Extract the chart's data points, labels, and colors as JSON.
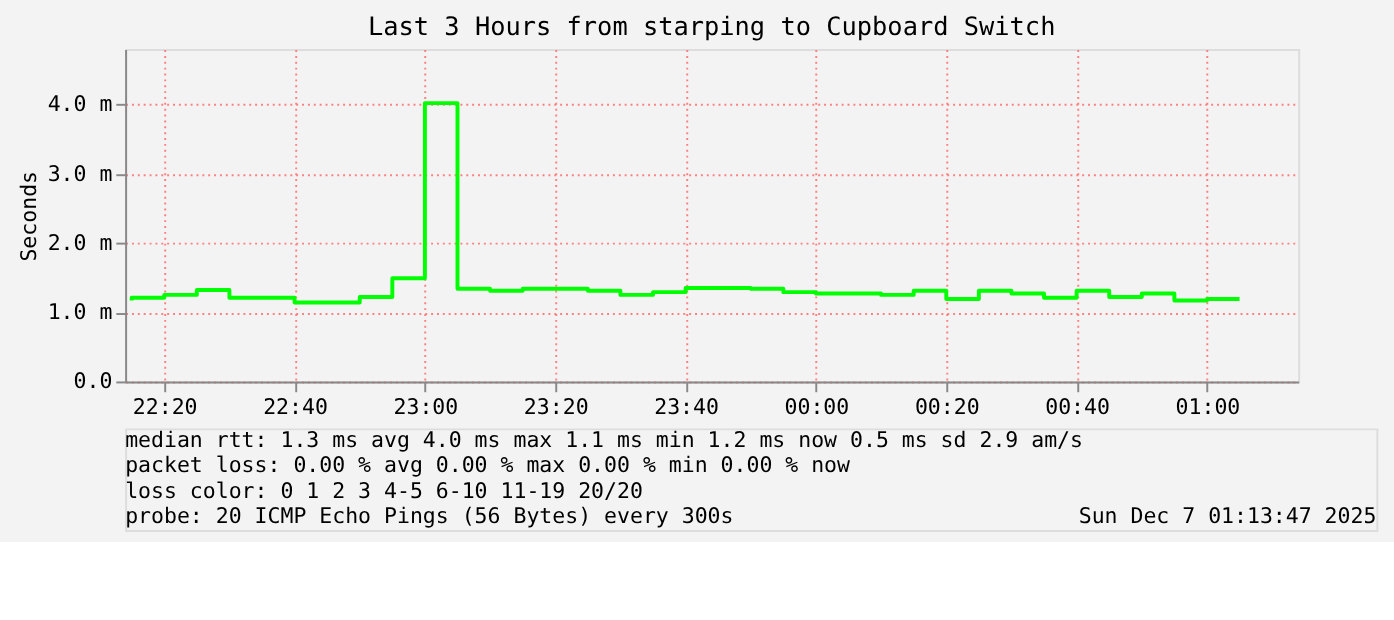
{
  "chart_data": {
    "type": "step",
    "title": "Last 3 Hours from starping to Cupboard Switch",
    "ylabel": "Seconds",
    "x": [
      "2025-12-06T22:15",
      "2025-12-06T22:20",
      "2025-12-06T22:25",
      "2025-12-06T22:30",
      "2025-12-06T22:35",
      "2025-12-06T22:40",
      "2025-12-06T22:45",
      "2025-12-06T22:50",
      "2025-12-06T22:55",
      "2025-12-06T23:00",
      "2025-12-06T23:05",
      "2025-12-06T23:10",
      "2025-12-06T23:15",
      "2025-12-06T23:20",
      "2025-12-06T23:25",
      "2025-12-06T23:30",
      "2025-12-06T23:35",
      "2025-12-06T23:40",
      "2025-12-06T23:45",
      "2025-12-06T23:50",
      "2025-12-06T23:55",
      "2025-12-07T00:00",
      "2025-12-07T00:05",
      "2025-12-07T00:10",
      "2025-12-07T00:15",
      "2025-12-07T00:20",
      "2025-12-07T00:25",
      "2025-12-07T00:30",
      "2025-12-07T00:35",
      "2025-12-07T00:40",
      "2025-12-07T00:45",
      "2025-12-07T00:50",
      "2025-12-07T00:55",
      "2025-12-07T01:00",
      "2025-12-07T01:05"
    ],
    "series": [
      {
        "color": "#00ff00",
        "values": [
          1.17,
          1.21,
          1.25,
          1.32,
          1.21,
          1.21,
          1.14,
          1.14,
          1.22,
          1.49,
          4.02,
          1.34,
          1.31,
          1.34,
          1.34,
          1.31,
          1.25,
          1.29,
          1.35,
          1.35,
          1.34,
          1.29,
          1.27,
          1.27,
          1.25,
          1.31,
          1.19,
          1.31,
          1.27,
          1.21,
          1.31,
          1.22,
          1.27,
          1.17,
          1.19
        ]
      }
    ],
    "xlim": [
      "2025-12-06T22:14",
      "2025-12-07T01:14"
    ],
    "xticks": [
      {
        "value": "2025-12-06T22:20",
        "label": "22:20"
      },
      {
        "value": "2025-12-06T22:40",
        "label": "22:40"
      },
      {
        "value": "2025-12-06T23:00",
        "label": "23:00"
      },
      {
        "value": "2025-12-06T23:20",
        "label": "23:20"
      },
      {
        "value": "2025-12-06T23:40",
        "label": "23:40"
      },
      {
        "value": "2025-12-07T00:00",
        "label": "00:00"
      },
      {
        "value": "2025-12-07T00:20",
        "label": "00:20"
      },
      {
        "value": "2025-12-07T00:40",
        "label": "00:40"
      },
      {
        "value": "2025-12-07T01:00",
        "label": "01:00"
      }
    ],
    "ylim": [
      0,
      4.8
    ],
    "yticks": [
      {
        "value": 0,
        "label": "0.0"
      },
      {
        "value": 1,
        "label": "1.0 m"
      },
      {
        "value": 2,
        "label": "2.0 m"
      },
      {
        "value": 3,
        "label": "3.0 m"
      },
      {
        "value": 4,
        "label": "4.0 m"
      }
    ],
    "grid": true,
    "annotations": [
      "median rtt:  1.3 ms avg  4.0 ms max  1.1 ms min  1.2 ms now  0.5 ms sd  2.9   am/s",
      "packet loss: 0.00 % avg  0.00 % max  0.00 % min  0.00 % now",
      "loss color:  0  1  2  3  4-5  6-10  11-19  20/20",
      "probe:       20 ICMP Echo Pings (56 Bytes) every 300s",
      "Sun Dec  7 01:13:47 2025"
    ]
  }
}
